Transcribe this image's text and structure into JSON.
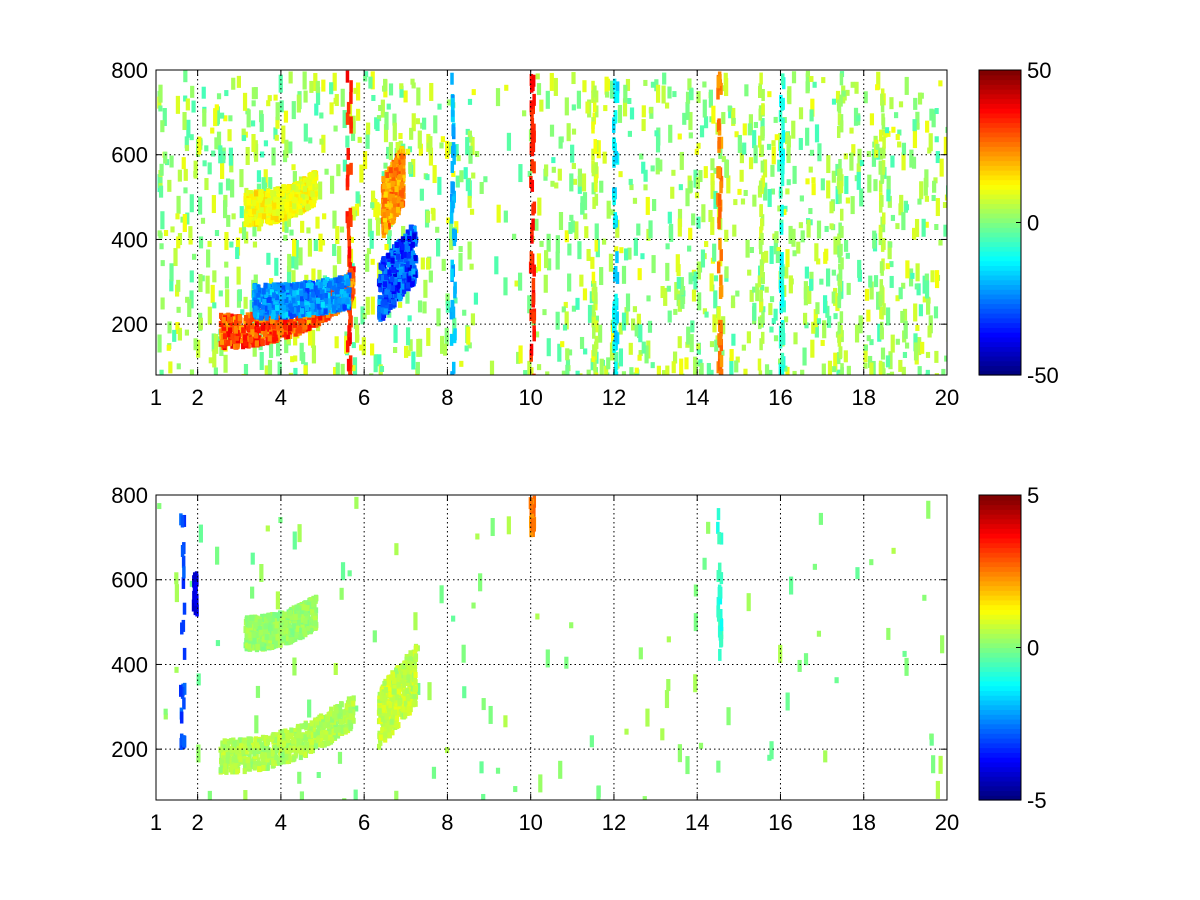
{
  "chart_data": [
    {
      "type": "heatmap",
      "title": "",
      "xlabel": "",
      "ylabel": "",
      "xlim": [
        1,
        20
      ],
      "ylim": [
        80,
        800
      ],
      "xticks": [
        1,
        2,
        4,
        6,
        8,
        10,
        12,
        14,
        16,
        18,
        20
      ],
      "yticks": [
        200,
        400,
        600,
        800
      ],
      "grid": true,
      "grid_style": "dotted",
      "colormap": "jet",
      "colorbar": {
        "range": [
          -50,
          50
        ],
        "ticks": [
          50,
          0,
          -50
        ]
      },
      "features": [
        {
          "x_range": [
            2.5,
            5.7
          ],
          "y_center": [
            190,
            300
          ],
          "value": 38,
          "kind": "arc"
        },
        {
          "x_range": [
            3.3,
            5.6
          ],
          "y_center": [
            260,
            285
          ],
          "value": -30,
          "kind": "arc"
        },
        {
          "x_range": [
            3.1,
            4.8
          ],
          "y_center": [
            480,
            530
          ],
          "value": 15,
          "kind": "arc"
        },
        {
          "x_range": [
            6.3,
            7.2
          ],
          "y_center": [
            280,
            380
          ],
          "value": -40,
          "kind": "blob"
        },
        {
          "x_range": [
            6.4,
            6.9
          ],
          "y_center": [
            480,
            560
          ],
          "value": 30,
          "kind": "blob"
        }
      ],
      "streaks": [
        {
          "x": 5.6,
          "value": 35
        },
        {
          "x": 8.1,
          "value": -20
        },
        {
          "x": 10.0,
          "value": 35
        },
        {
          "x": 11.5,
          "value": 8
        },
        {
          "x": 12.0,
          "value": -15
        },
        {
          "x": 14.5,
          "value": 25
        },
        {
          "x": 15.5,
          "value": 6
        },
        {
          "x": 16.0,
          "value": -10
        },
        {
          "x": 17.4,
          "value": 4
        },
        {
          "x": 18.4,
          "value": 6
        }
      ]
    },
    {
      "type": "heatmap",
      "title": "",
      "xlabel": "",
      "ylabel": "",
      "xlim": [
        1,
        20
      ],
      "ylim": [
        80,
        800
      ],
      "xticks": [
        1,
        2,
        4,
        6,
        8,
        10,
        12,
        14,
        16,
        18,
        20
      ],
      "yticks": [
        200,
        400,
        600,
        800
      ],
      "grid": true,
      "grid_style": "dotted",
      "colormap": "jet",
      "colorbar": {
        "range": [
          -5,
          5
        ],
        "ticks": [
          5,
          0,
          -5
        ]
      },
      "features": [
        {
          "x_range": [
            2.5,
            5.7
          ],
          "y_center": [
            190,
            300
          ],
          "value": 0.6,
          "kind": "arc"
        },
        {
          "x_range": [
            3.1,
            4.8
          ],
          "y_center": [
            480,
            530
          ],
          "value": 0.3,
          "kind": "arc"
        },
        {
          "x_range": [
            6.3,
            7.2
          ],
          "y_center": [
            280,
            380
          ],
          "value": 0.9,
          "kind": "blob"
        }
      ],
      "streaks": [
        {
          "x": 10.0,
          "y_range": [
            720,
            800
          ],
          "value": 2.5
        },
        {
          "x": 14.5,
          "y_range": [
            430,
            780
          ],
          "value": -0.8
        },
        {
          "x": 1.6,
          "y_range": [
            220,
            760
          ],
          "value": -3
        },
        {
          "x": 1.9,
          "y_range": [
            540,
            620
          ],
          "value": -4
        }
      ]
    }
  ]
}
